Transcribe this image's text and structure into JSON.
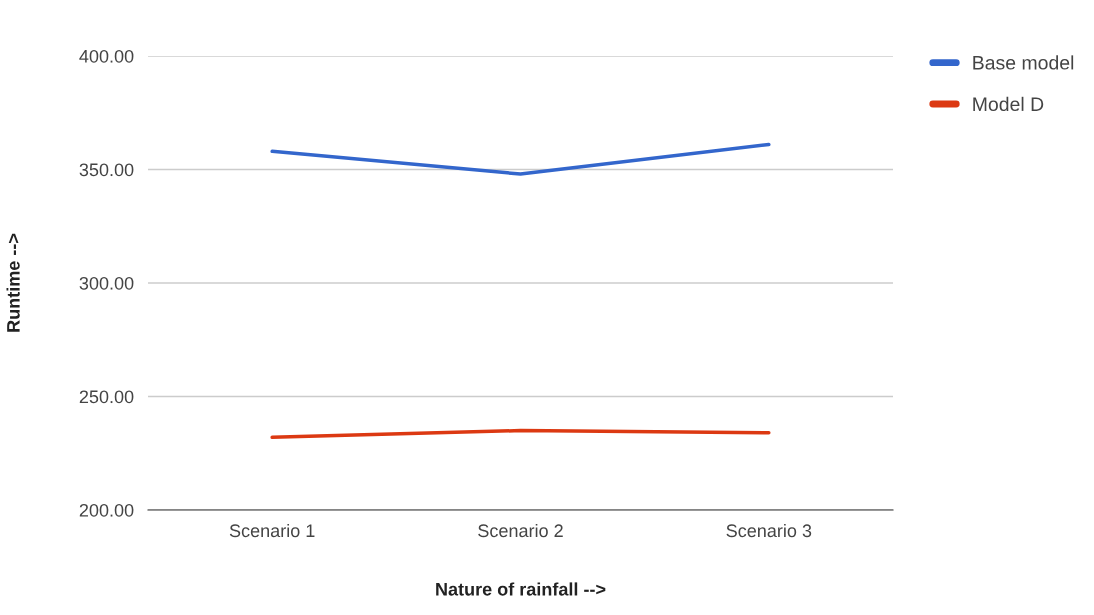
{
  "chart_data": {
    "type": "line",
    "xlabel": "Nature of rainfall -->",
    "ylabel": "Runtime -->",
    "categories": [
      "Scenario 1",
      "Scenario 2",
      "Scenario 3"
    ],
    "series": [
      {
        "name": "Base model",
        "color": "#3366cc",
        "values": [
          358,
          348,
          361
        ]
      },
      {
        "name": "Model D",
        "color": "#dc3912",
        "values": [
          232,
          235,
          234
        ]
      }
    ],
    "ylim": [
      200,
      400
    ],
    "yticks": [
      {
        "value": 200,
        "label": "200.00"
      },
      {
        "value": 250,
        "label": "250.00"
      },
      {
        "value": 300,
        "label": "300.00"
      },
      {
        "value": 350,
        "label": "350.00"
      },
      {
        "value": 400,
        "label": "400.00"
      }
    ],
    "grid": "y",
    "legend": "top right",
    "marker": "none",
    "line_style": "solid"
  }
}
